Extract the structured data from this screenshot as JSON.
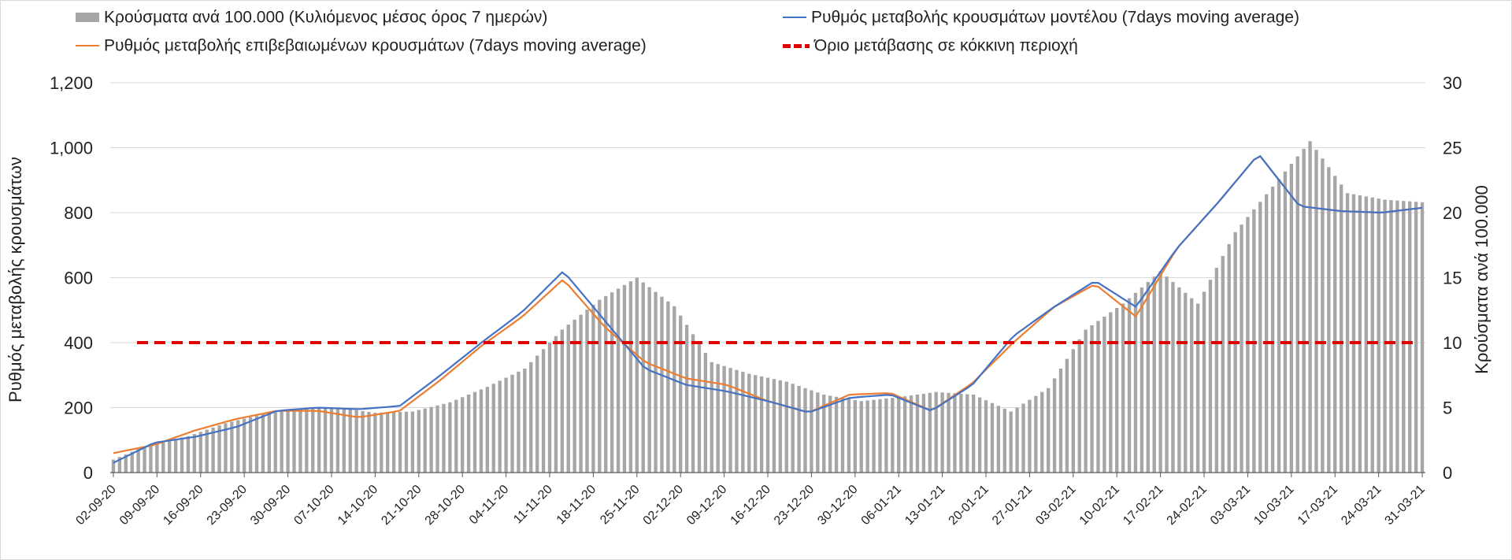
{
  "chart_data": {
    "type": "bar",
    "legend": [
      {
        "key": "bars",
        "label": "Κρούσματα ανά 100.000 (Κυλιόμενος μέσος όρος 7 ημερών)",
        "color": "#a6a6a6",
        "style": "bar"
      },
      {
        "key": "model",
        "label": "Ρυθμός μεταβολής κρουσμάτων μοντέλου (7days moving average)",
        "color": "#4472c4",
        "style": "line"
      },
      {
        "key": "confirmed",
        "label": "Ρυθμός μεταβολής επιβεβαιωμένων κρουσμάτων (7days moving average)",
        "color": "#ed7d31",
        "style": "line"
      },
      {
        "key": "threshold",
        "label": "Όριο μετάβασης σε κόκκινη περιοχή",
        "color": "#e00000",
        "style": "dashed"
      }
    ],
    "ylabel_left": "Ρυθμός μεταβολής κρουσμάτων",
    "ylabel_right": "Κρούσματα ανά 100.000",
    "ylim_left": [
      0,
      1200
    ],
    "ylim_right": [
      0,
      30
    ],
    "yticks_left": [
      "0",
      "200",
      "400",
      "600",
      "800",
      "1,000",
      "1,200"
    ],
    "yticks_right": [
      "0",
      "5",
      "10",
      "15",
      "20",
      "25",
      "30"
    ],
    "grid": true,
    "start_date": "02-09-20",
    "xtick_labels": [
      "02-09-20",
      "09-09-20",
      "16-09-20",
      "23-09-20",
      "30-09-20",
      "07-10-20",
      "14-10-20",
      "21-10-20",
      "28-10-20",
      "04-11-20",
      "11-11-20",
      "18-11-20",
      "25-11-20",
      "02-12-20",
      "09-12-20",
      "16-12-20",
      "23-12-20",
      "30-12-20",
      "06-01-21",
      "13-01-21",
      "20-01-21",
      "27-01-21",
      "03-02-21",
      "10-02-21",
      "17-02-21",
      "24-02-21",
      "03-03-21",
      "10-03-21",
      "17-03-21",
      "24-03-21",
      "31-03-21"
    ],
    "threshold_value": 400,
    "weekly_bars": [
      1.0,
      2.2,
      2.8,
      3.8,
      4.5,
      4.9,
      5.0,
      4.6,
      4.7,
      5.4,
      6.6,
      8.0,
      11.0,
      13.3,
      15.0,
      12.8,
      8.5,
      7.6,
      7.0,
      6.0,
      5.5,
      5.8,
      6.2,
      6.0,
      4.7,
      6.5,
      11.0,
      13.0,
      15.5,
      13.0,
      18.5,
      22.0,
      25.5,
      21.5,
      21.0,
      20.8
    ],
    "weekly_model": [
      30,
      92,
      110,
      140,
      190,
      200,
      195,
      205,
      300,
      400,
      495,
      620,
      470,
      320,
      270,
      250,
      220,
      185,
      230,
      240,
      190,
      270,
      420,
      510,
      590,
      510,
      690,
      830,
      980,
      820,
      805,
      800,
      815
    ],
    "weekly_confirmed": [
      60,
      85,
      130,
      165,
      190,
      190,
      170,
      190,
      285,
      390,
      480,
      595,
      450,
      340,
      290,
      270,
      220,
      185,
      240,
      245,
      190,
      275,
      400,
      510,
      580,
      480,
      690,
      830,
      980,
      820,
      805,
      800,
      815
    ]
  }
}
